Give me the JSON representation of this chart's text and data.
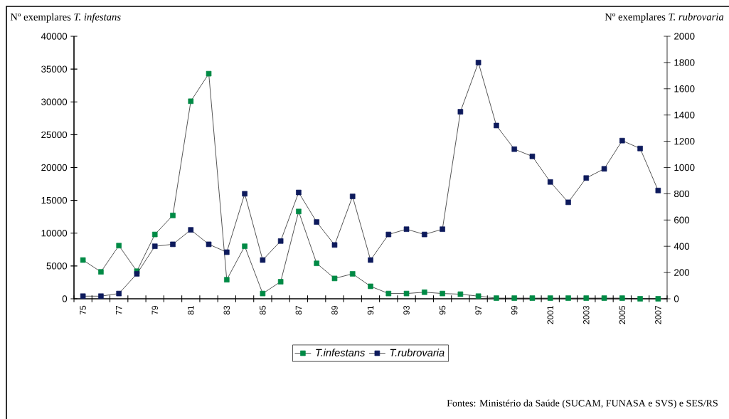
{
  "chart_data": {
    "type": "line",
    "ylabel": "Nº exemplares *T. infestans*",
    "y2label": "Nº exemplares *T. rubrovaria*",
    "annotations": [
      "Fontes: Ministério da Saúde (SUCAM, FUNASA e SVS) e SES/RS"
    ],
    "categories": [
      "75",
      null,
      "77",
      null,
      "79",
      null,
      "81",
      null,
      "83",
      null,
      "85",
      null,
      "87",
      null,
      "89",
      null,
      "91",
      null,
      "93",
      null,
      "95",
      null,
      "97",
      null,
      "99",
      null,
      "2001",
      null,
      "2003",
      null,
      "2005",
      null,
      "2007"
    ],
    "series": [
      {
        "name": "T.infestans",
        "color": "#008a45",
        "values": [
          5900,
          4100,
          8100,
          4200,
          9800,
          12700,
          30100,
          34300,
          2900,
          8000,
          800,
          2600,
          13300,
          5400,
          3100,
          3800,
          1900,
          800,
          800,
          1000,
          800,
          700,
          400,
          100,
          100,
          100,
          100,
          100,
          100,
          100,
          100,
          0,
          0
        ]
      },
      {
        "name": "T.rubrovaria",
        "color": "#0d1a5c",
        "axis": "y2",
        "values": [
          20,
          20,
          40,
          190,
          400,
          415,
          525,
          415,
          355,
          800,
          295,
          440,
          810,
          585,
          410,
          780,
          295,
          490,
          530,
          490,
          530,
          1425,
          1800,
          1320,
          1140,
          1085,
          890,
          735,
          920,
          990,
          1205,
          1145,
          825
        ]
      }
    ],
    "ylim": [
      0,
      40000
    ],
    "yticks": [
      0,
      5000,
      10000,
      15000,
      20000,
      25000,
      30000,
      35000,
      40000
    ],
    "y2lim": [
      0,
      2000
    ],
    "y2ticks": [
      0,
      200,
      400,
      600,
      800,
      1000,
      1200,
      1400,
      1600,
      1800,
      2000
    ],
    "legend": "bottom",
    "marker": "square",
    "line_style": "solid",
    "grid": false
  }
}
